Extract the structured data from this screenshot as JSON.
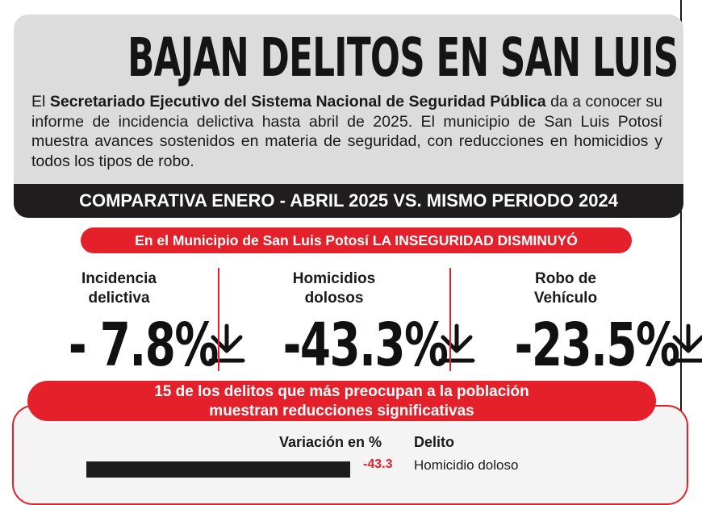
{
  "header": {
    "title": "BAJAN DELITOS EN SAN LUIS CAPITAL",
    "intro_prefix": "El ",
    "intro_bold": "Secretariado Ejecutivo del Sistema Nacional de Seguridad Pública",
    "intro_rest": " da a conocer su informe de incidencia delictiva hasta abril de 2025. El municipio de San Luis Potosí muestra avances sostenidos en materia de seguridad, con reducciones en homicidios y todos los tipos de robo.",
    "comparison_banner": "COMPARATIVA ENERO - ABRIL 2025 VS. MISMO PERIODO 2024"
  },
  "highlight": "En el Municipio de San Luis Potosí LA INSEGURIDAD DISMINUYÓ",
  "stats": [
    {
      "label_line1": "Incidencia",
      "label_line2": "delictiva",
      "value": "- 7.8%",
      "icon": "arrow-down-icon"
    },
    {
      "label_line1": "Homicidios",
      "label_line2": "dolosos",
      "value": "-43.3%",
      "icon": "arrow-down-icon"
    },
    {
      "label_line1": "Robo de",
      "label_line2": "Vehículo",
      "value": "-23.5%",
      "icon": "arrow-down-icon"
    }
  ],
  "section": {
    "title_line1": "15 de los delitos que más preocupan a la población",
    "title_line2": "muestran reducciones significativas",
    "col_variation": "Variación en %",
    "col_crime": "Delito",
    "rows": [
      {
        "value": "-43.3",
        "label": "Homicidio doloso"
      }
    ]
  },
  "colors": {
    "accent_red": "#e4202a",
    "dark": "#1f1d1e",
    "card_gray": "#dcdcdc"
  }
}
